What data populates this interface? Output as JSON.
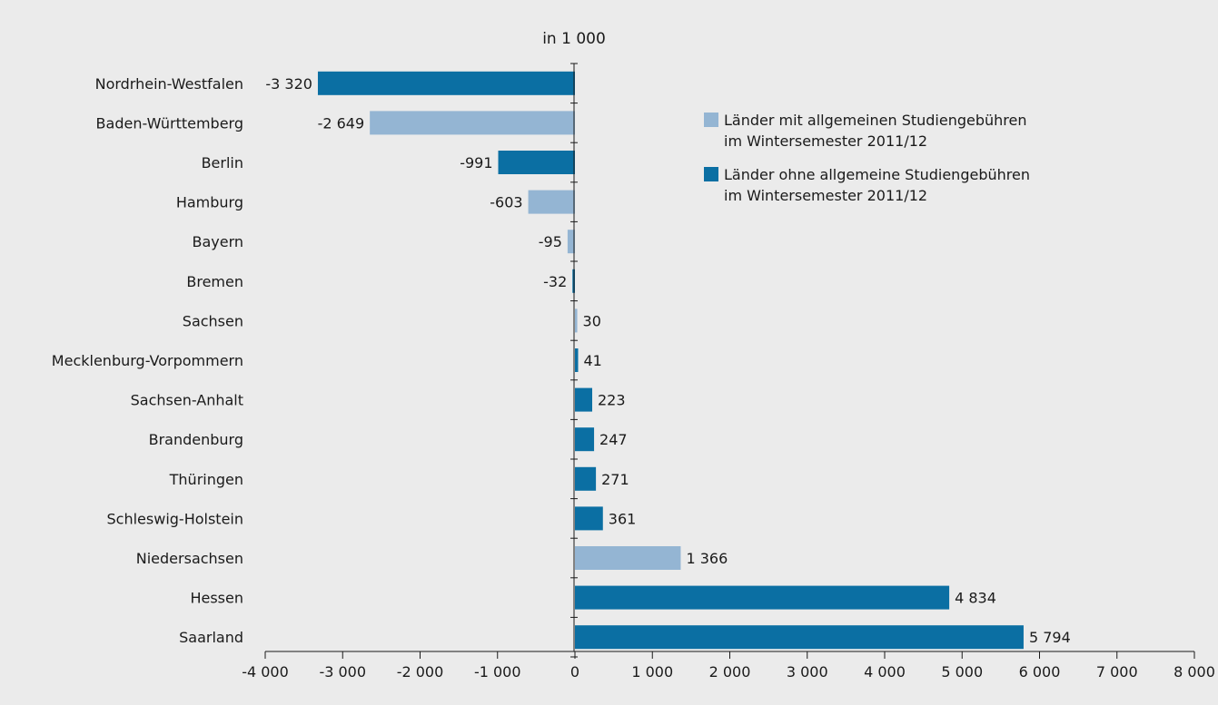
{
  "chart_data": {
    "type": "bar",
    "orientation": "horizontal",
    "unit": "in 1 000",
    "categories": [
      "Nordrhein-Westfalen",
      "Baden-Württemberg",
      "Berlin",
      "Hamburg",
      "Bayern",
      "Bremen",
      "Sachsen",
      "Mecklenburg-Vorpommern",
      "Sachsen-Anhalt",
      "Brandenburg",
      "Thüringen",
      "Schleswig-Holstein",
      "Niedersachsen",
      "Hessen",
      "Saarland"
    ],
    "values": [
      -3320,
      -2649,
      -991,
      -603,
      -95,
      -32,
      30,
      41,
      223,
      247,
      271,
      361,
      1366,
      4834,
      5794
    ],
    "value_labels": [
      "-3 320",
      "-2 649",
      "-991",
      "-603",
      "-95",
      "-32",
      "30",
      "41",
      "223",
      "247",
      "271",
      "361",
      "1 366",
      "4 834",
      "5 794"
    ],
    "groups": [
      "ohne",
      "mit",
      "ohne",
      "mit",
      "mit",
      "ohne",
      "mit",
      "ohne",
      "ohne",
      "ohne",
      "ohne",
      "ohne",
      "mit",
      "ohne",
      "ohne"
    ],
    "xlim": [
      -4000,
      8000
    ],
    "xticks": [
      -4000,
      -3000,
      -2000,
      -1000,
      0,
      1000,
      2000,
      3000,
      4000,
      5000,
      6000,
      7000,
      8000
    ],
    "xtick_labels": [
      "-4 000",
      "-3 000",
      "-2 000",
      "-1 000",
      "0",
      "1 000",
      "2 000",
      "3 000",
      "4 000",
      "5 000",
      "6 000",
      "7 000",
      "8 000"
    ],
    "legend": {
      "placement": "top-right",
      "entries": [
        {
          "key": "mit",
          "line1": "Länder mit allgemeinen Studiengebühren",
          "line2": "im Wintersemester 2011/12",
          "color": "#94b5d3"
        },
        {
          "key": "ohne",
          "line1": "Länder ohne allgemeine Studiengebühren",
          "line2": "im Wintersemester 2011/12",
          "color": "#0b6fa3"
        }
      ]
    },
    "grid": false
  }
}
